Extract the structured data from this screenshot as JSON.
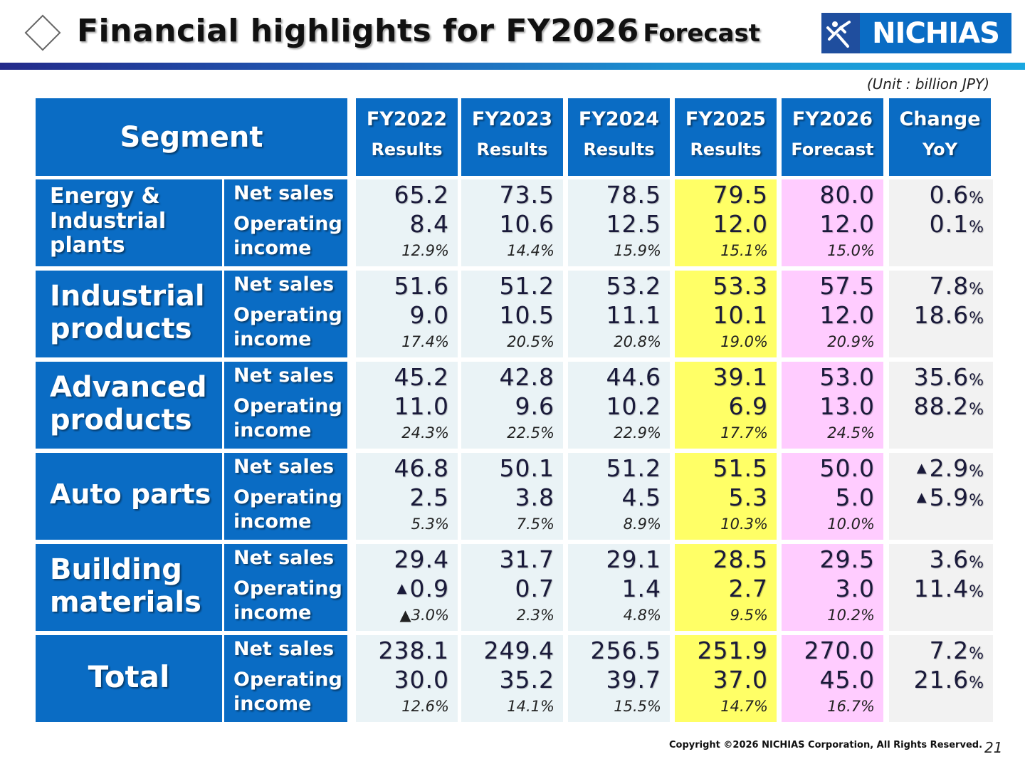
{
  "slide": {
    "title": "Financial highlights for FY2026",
    "title_suffix": "Forecast",
    "logo_text": "NICHIAS",
    "unit_note": "(Unit : billion JPY)",
    "copyright": "Copyright ©2026 NICHIAS Corporation, All Rights Reserved.",
    "page_number": "21"
  },
  "colors": {
    "header_blue": "#0a6cc4",
    "fy2025_highlight": "#ffff66",
    "fy2026_highlight": "#ffccff",
    "past_cell": "#eaf3f6",
    "change_cell": "#f2f2f2"
  },
  "table": {
    "segment_header": "Segment",
    "columns": [
      {
        "l1": "FY2022",
        "l2": "Results"
      },
      {
        "l1": "FY2023",
        "l2": "Results"
      },
      {
        "l1": "FY2024",
        "l2": "Results"
      },
      {
        "l1": "FY2025",
        "l2": "Results"
      },
      {
        "l1": "FY2026",
        "l2": "Forecast"
      },
      {
        "l1": "Change",
        "l2": "YoY"
      }
    ],
    "metric_labels": {
      "net_sales": "Net sales",
      "op_income_1": "Operating",
      "op_income_2": "income"
    },
    "negative_marker": "▲",
    "rows": [
      {
        "segment": "Energy & Industrial plants",
        "values": [
          {
            "ns": "65.2",
            "oi": "8.4",
            "margin": "12.9%"
          },
          {
            "ns": "73.5",
            "oi": "10.6",
            "margin": "14.4%"
          },
          {
            "ns": "78.5",
            "oi": "12.5",
            "margin": "15.9%"
          },
          {
            "ns": "79.5",
            "oi": "12.0",
            "margin": "15.1%"
          },
          {
            "ns": "80.0",
            "oi": "12.0",
            "margin": "15.0%"
          }
        ],
        "change": {
          "ns": "0.6",
          "oi": "0.1"
        }
      },
      {
        "segment": "Industrial products",
        "values": [
          {
            "ns": "51.6",
            "oi": "9.0",
            "margin": "17.4%"
          },
          {
            "ns": "51.2",
            "oi": "10.5",
            "margin": "20.5%"
          },
          {
            "ns": "53.2",
            "oi": "11.1",
            "margin": "20.8%"
          },
          {
            "ns": "53.3",
            "oi": "10.1",
            "margin": "19.0%"
          },
          {
            "ns": "57.5",
            "oi": "12.0",
            "margin": "20.9%"
          }
        ],
        "change": {
          "ns": "7.8",
          "oi": "18.6"
        }
      },
      {
        "segment": "Advanced products",
        "values": [
          {
            "ns": "45.2",
            "oi": "11.0",
            "margin": "24.3%"
          },
          {
            "ns": "42.8",
            "oi": "9.6",
            "margin": "22.5%"
          },
          {
            "ns": "44.6",
            "oi": "10.2",
            "margin": "22.9%"
          },
          {
            "ns": "39.1",
            "oi": "6.9",
            "margin": "17.7%"
          },
          {
            "ns": "53.0",
            "oi": "13.0",
            "margin": "24.5%"
          }
        ],
        "change": {
          "ns": "35.6",
          "oi": "88.2"
        }
      },
      {
        "segment": "Auto parts",
        "values": [
          {
            "ns": "46.8",
            "oi": "2.5",
            "margin": "5.3%"
          },
          {
            "ns": "50.1",
            "oi": "3.8",
            "margin": "7.5%"
          },
          {
            "ns": "51.2",
            "oi": "4.5",
            "margin": "8.9%"
          },
          {
            "ns": "51.5",
            "oi": "5.3",
            "margin": "10.3%"
          },
          {
            "ns": "50.0",
            "oi": "5.0",
            "margin": "10.0%"
          }
        ],
        "change": {
          "ns": "2.9",
          "oi": "5.9",
          "ns_negative": true,
          "oi_negative": true
        }
      },
      {
        "segment": "Building materials",
        "values": [
          {
            "ns": "29.4",
            "oi": "0.9",
            "margin": "3.0%",
            "oi_negative": true,
            "margin_negative": true
          },
          {
            "ns": "31.7",
            "oi": "0.7",
            "margin": "2.3%"
          },
          {
            "ns": "29.1",
            "oi": "1.4",
            "margin": "4.8%"
          },
          {
            "ns": "28.5",
            "oi": "2.7",
            "margin": "9.5%"
          },
          {
            "ns": "29.5",
            "oi": "3.0",
            "margin": "10.2%"
          }
        ],
        "change": {
          "ns": "3.6",
          "oi": "11.4"
        }
      },
      {
        "segment": "Total",
        "values": [
          {
            "ns": "238.1",
            "oi": "30.0",
            "margin": "12.6%"
          },
          {
            "ns": "249.4",
            "oi": "35.2",
            "margin": "14.1%"
          },
          {
            "ns": "256.5",
            "oi": "39.7",
            "margin": "15.5%"
          },
          {
            "ns": "251.9",
            "oi": "37.0",
            "margin": "14.7%"
          },
          {
            "ns": "270.0",
            "oi": "45.0",
            "margin": "16.7%"
          }
        ],
        "change": {
          "ns": "7.2",
          "oi": "21.6"
        }
      }
    ],
    "percent_symbol": "%"
  }
}
